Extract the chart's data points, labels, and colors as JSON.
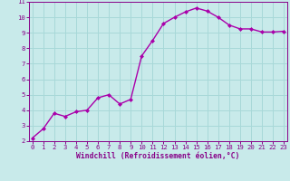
{
  "x": [
    0,
    1,
    2,
    3,
    4,
    5,
    6,
    7,
    8,
    9,
    10,
    11,
    12,
    13,
    14,
    15,
    16,
    17,
    18,
    19,
    20,
    21,
    22,
    23
  ],
  "y": [
    2.2,
    2.8,
    3.8,
    3.6,
    3.9,
    4.0,
    4.8,
    5.0,
    4.4,
    4.7,
    7.5,
    8.5,
    9.6,
    10.0,
    10.35,
    10.6,
    10.4,
    10.0,
    9.5,
    9.25,
    9.25,
    9.05,
    9.05,
    9.1
  ],
  "xlim": [
    -0.3,
    23.3
  ],
  "ylim": [
    2,
    11
  ],
  "xticks": [
    0,
    1,
    2,
    3,
    4,
    5,
    6,
    7,
    8,
    9,
    10,
    11,
    12,
    13,
    14,
    15,
    16,
    17,
    18,
    19,
    20,
    21,
    22,
    23
  ],
  "yticks": [
    2,
    3,
    4,
    5,
    6,
    7,
    8,
    9,
    10,
    11
  ],
  "xlabel": "Windchill (Refroidissement éolien,°C)",
  "line_color": "#aa00aa",
  "marker": "D",
  "marker_size": 2.0,
  "bg_color": "#c8eaea",
  "grid_color": "#a8d8d8",
  "tick_color": "#880088",
  "label_color": "#880088",
  "xlabel_fontsize": 5.8,
  "tick_fontsize": 5.2,
  "linewidth": 1.0
}
